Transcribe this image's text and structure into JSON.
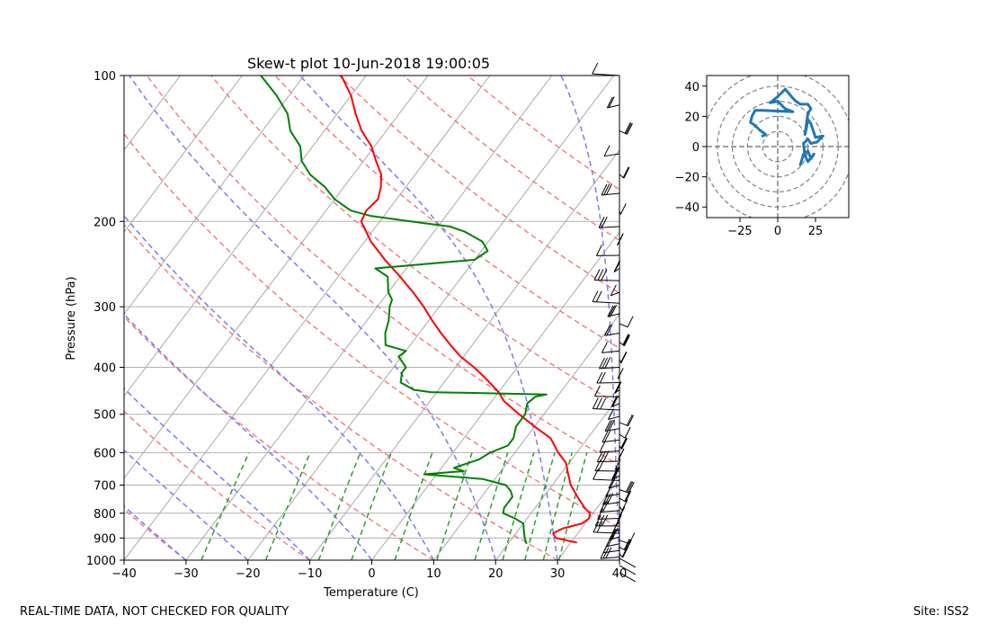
{
  "footer": {
    "left": "REAL-TIME DATA, NOT CHECKED FOR QUALITY",
    "right": "Site: ISS2"
  },
  "chart_data": [
    {
      "type": "line",
      "subtype": "skew-t log-p",
      "title": "Skew-t plot 10-Jun-2018 19:00:05",
      "xlabel": "Temperature (C)",
      "ylabel": "Pressure (hPa)",
      "xlim": [
        -40,
        40
      ],
      "ylim": [
        1000,
        100
      ],
      "y_scale": "log",
      "x_ticks": [
        -40,
        -30,
        -20,
        -10,
        0,
        10,
        20,
        30,
        40
      ],
      "y_ticks": [
        100,
        200,
        300,
        400,
        500,
        600,
        700,
        800,
        900,
        1000
      ],
      "grid": true,
      "series": [
        {
          "role": "temperature",
          "color": "#ff0000",
          "points": [
            [
              920,
              31
            ],
            [
              900,
              27
            ],
            [
              880,
              26
            ],
            [
              860,
              27
            ],
            [
              840,
              29.5
            ],
            [
              820,
              30
            ],
            [
              800,
              29.5
            ],
            [
              780,
              28
            ],
            [
              740,
              25.5
            ],
            [
              700,
              23
            ],
            [
              660,
              21
            ],
            [
              630,
              19.5
            ],
            [
              600,
              17
            ],
            [
              560,
              14
            ],
            [
              530,
              10
            ],
            [
              500,
              6
            ],
            [
              470,
              2
            ],
            [
              450,
              0
            ],
            [
              420,
              -4
            ],
            [
              400,
              -7
            ],
            [
              380,
              -10.5
            ],
            [
              360,
              -13.5
            ],
            [
              340,
              -16.5
            ],
            [
              320,
              -19.5
            ],
            [
              300,
              -22.5
            ],
            [
              280,
              -26
            ],
            [
              260,
              -30
            ],
            [
              240,
              -34.5
            ],
            [
              220,
              -39
            ],
            [
              200,
              -43
            ],
            [
              190,
              -43.5
            ],
            [
              180,
              -43
            ],
            [
              170,
              -44
            ],
            [
              160,
              -45.5
            ],
            [
              150,
              -48
            ],
            [
              140,
              -50.5
            ],
            [
              130,
              -54
            ],
            [
              120,
              -57
            ],
            [
              110,
              -60
            ],
            [
              100,
              -64
            ]
          ]
        },
        {
          "role": "dewpoint",
          "color": "#008000",
          "points": [
            [
              925,
              23
            ],
            [
              900,
              22
            ],
            [
              870,
              21
            ],
            [
              840,
              20
            ],
            [
              820,
              18
            ],
            [
              800,
              15.5
            ],
            [
              780,
              15
            ],
            [
              760,
              15
            ],
            [
              740,
              15
            ],
            [
              720,
              14
            ],
            [
              700,
              12.5
            ],
            [
              680,
              8
            ],
            [
              665,
              -2
            ],
            [
              655,
              4
            ],
            [
              645,
              2
            ],
            [
              620,
              5
            ],
            [
              600,
              6
            ],
            [
              580,
              8
            ],
            [
              560,
              8
            ],
            [
              530,
              7
            ],
            [
              500,
              7
            ],
            [
              475,
              6
            ],
            [
              460,
              6.5
            ],
            [
              455,
              8
            ],
            [
              450,
              -11
            ],
            [
              445,
              -14
            ],
            [
              430,
              -17
            ],
            [
              410,
              -18
            ],
            [
              400,
              -18
            ],
            [
              380,
              -20.5
            ],
            [
              370,
              -20
            ],
            [
              360,
              -24
            ],
            [
              340,
              -25.5
            ],
            [
              320,
              -26.5
            ],
            [
              300,
              -28
            ],
            [
              290,
              -28.5
            ],
            [
              280,
              -30
            ],
            [
              260,
              -32
            ],
            [
              250,
              -35
            ],
            [
              240,
              -20
            ],
            [
              230,
              -19
            ],
            [
              220,
              -21
            ],
            [
              210,
              -25
            ],
            [
              205,
              -28
            ],
            [
              200,
              -35
            ],
            [
              195,
              -42
            ],
            [
              190,
              -46
            ],
            [
              180,
              -50
            ],
            [
              170,
              -53
            ],
            [
              160,
              -57
            ],
            [
              150,
              -60
            ],
            [
              140,
              -62
            ],
            [
              130,
              -65.5
            ],
            [
              120,
              -68
            ],
            [
              110,
              -72
            ],
            [
              100,
              -77
            ]
          ]
        }
      ],
      "reference_lines": {
        "isotherms": "gray solid",
        "dry_adiabats": "red dashed",
        "moist_adiabats": "blue dashed",
        "mixing_ratio": "green dashed"
      },
      "wind_barbs": "black, right edge, 100 to 1000 hPa"
    },
    {
      "type": "line",
      "subtype": "hodograph",
      "xlim": [
        -47,
        47
      ],
      "ylim": [
        -47,
        47
      ],
      "x_ticks": [
        -25,
        0,
        25
      ],
      "y_ticks": [
        -40,
        -20,
        0,
        20,
        40
      ],
      "range_rings": [
        10,
        20,
        30,
        40,
        50
      ],
      "series": [
        {
          "color": "#1f77b4",
          "points": [
            [
              15,
              -12
            ],
            [
              17,
              -5
            ],
            [
              20,
              -3
            ],
            [
              22,
              -8
            ],
            [
              24,
              -5
            ],
            [
              20,
              -10
            ],
            [
              18,
              -6
            ],
            [
              17,
              2
            ],
            [
              20,
              5
            ],
            [
              22,
              2
            ],
            [
              26,
              3
            ],
            [
              30,
              7
            ],
            [
              25,
              6
            ],
            [
              22,
              15
            ],
            [
              20,
              18
            ],
            [
              19,
              12
            ],
            [
              18,
              8
            ],
            [
              20,
              22
            ],
            [
              22,
              25
            ],
            [
              20,
              28
            ],
            [
              15,
              28
            ],
            [
              12,
              30
            ],
            [
              10,
              32
            ],
            [
              5,
              38
            ],
            [
              0,
              33
            ],
            [
              -5,
              29
            ],
            [
              0,
              30
            ],
            [
              5,
              25
            ],
            [
              10,
              23
            ],
            [
              -10,
              24
            ],
            [
              -15,
              24
            ],
            [
              -17,
              20
            ],
            [
              -18,
              16
            ],
            [
              -15,
              14
            ],
            [
              -12,
              11
            ],
            [
              -8,
              8
            ],
            [
              -10,
              7
            ]
          ]
        }
      ]
    }
  ]
}
